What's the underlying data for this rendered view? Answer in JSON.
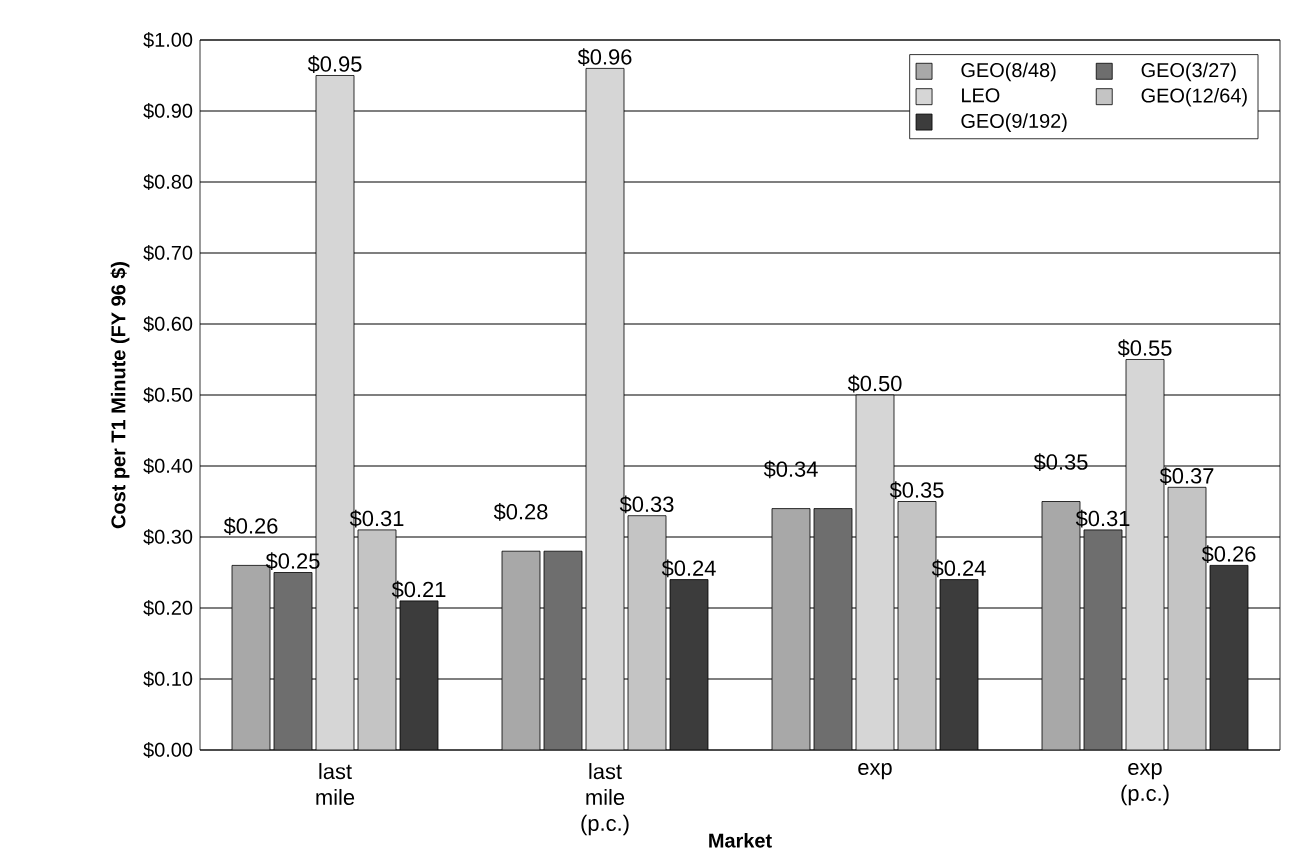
{
  "chart_data": {
    "type": "bar",
    "xlabel": "Market",
    "ylabel": "Cost per T1 Minute (FY 96 $)",
    "categories": [
      "last mile",
      "last mile (p.c.)",
      "exp",
      "exp (p.c.)"
    ],
    "series": [
      {
        "name": "GEO(8/48)",
        "color": "#a8a8a8",
        "values": [
          0.26,
          0.28,
          0.34,
          0.35
        ],
        "value_labels": [
          "$0.26",
          "$0.28",
          "$0.34",
          "$0.35"
        ]
      },
      {
        "name": "GEO(3/27)",
        "color": "#6e6e6e",
        "values": [
          0.25,
          0.28,
          0.34,
          0.31
        ],
        "value_labels": [
          "$0.25",
          null,
          null,
          "$0.31"
        ]
      },
      {
        "name": "LEO",
        "color": "#d6d6d6",
        "values": [
          0.95,
          0.96,
          0.5,
          0.55
        ],
        "value_labels": [
          "$0.95",
          "$0.96",
          "$0.50",
          "$0.55"
        ]
      },
      {
        "name": "GEO(12/64)",
        "color": "#c4c4c4",
        "values": [
          0.31,
          0.33,
          0.35,
          0.37
        ],
        "value_labels": [
          "$0.31",
          "$0.33",
          "$0.35",
          "$0.37"
        ]
      },
      {
        "name": "GEO(9/192)",
        "color": "#3c3c3c",
        "values": [
          0.21,
          0.24,
          0.24,
          0.26
        ],
        "value_labels": [
          "$0.21",
          "$0.24",
          "$0.24",
          "$0.26"
        ]
      }
    ],
    "ylim": [
      0,
      1
    ],
    "yticks": [
      {
        "value": 0,
        "label": "$0.00"
      },
      {
        "value": 0.1,
        "label": "$0.10"
      },
      {
        "value": 0.2,
        "label": "$0.20"
      },
      {
        "value": 0.3,
        "label": "$0.30"
      },
      {
        "value": 0.4,
        "label": "$0.40"
      },
      {
        "value": 0.5,
        "label": "$0.50"
      },
      {
        "value": 0.6,
        "label": "$0.60"
      },
      {
        "value": 0.7,
        "label": "$0.70"
      },
      {
        "value": 0.8,
        "label": "$0.80"
      },
      {
        "value": 0.9,
        "label": "$0.90"
      },
      {
        "value": 1,
        "label": "$1.00"
      }
    ],
    "grid": "y",
    "legend": "top right"
  }
}
